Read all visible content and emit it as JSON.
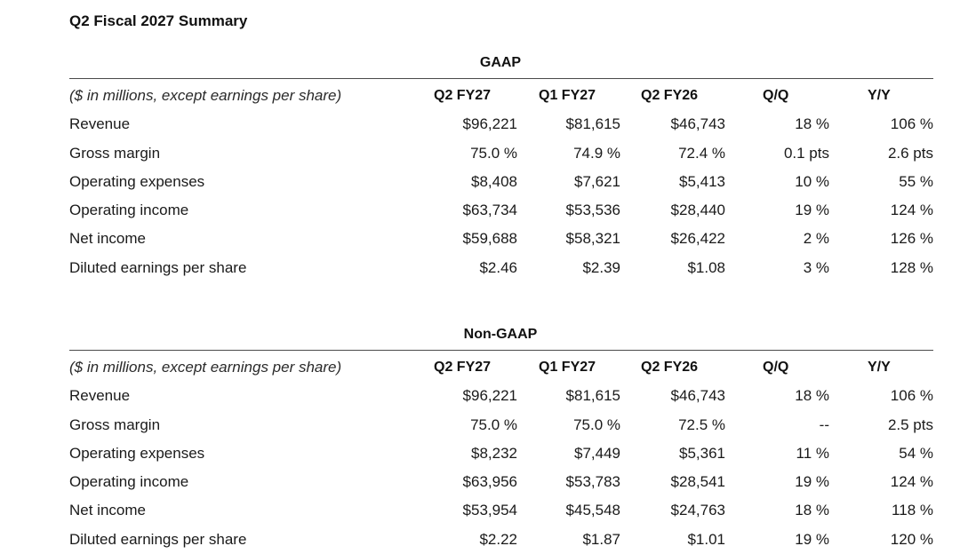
{
  "title": "Q2 Fiscal 2027 Summary",
  "columns": [
    "Q2 FY27",
    "Q1 FY27",
    "Q2 FY26",
    "Q/Q",
    "Y/Y"
  ],
  "sections": [
    {
      "heading": "GAAP",
      "unit_note": "($ in millions, except earnings per share)",
      "rows": [
        {
          "label": "Revenue",
          "q2fy27": "$96,221",
          "q1fy27": "$81,615",
          "q2fy26": "$46,743",
          "qq": "18 %",
          "yy": "106 %"
        },
        {
          "label": "Gross margin",
          "q2fy27": "75.0 %",
          "q1fy27": "74.9 %",
          "q2fy26": "72.4 %",
          "qq": "0.1 pts",
          "yy": "2.6 pts"
        },
        {
          "label": "Operating expenses",
          "q2fy27": "$8,408",
          "q1fy27": "$7,621",
          "q2fy26": "$5,413",
          "qq": "10 %",
          "yy": "55 %"
        },
        {
          "label": "Operating income",
          "q2fy27": "$63,734",
          "q1fy27": "$53,536",
          "q2fy26": "$28,440",
          "qq": "19 %",
          "yy": "124 %"
        },
        {
          "label": "Net income",
          "q2fy27": "$59,688",
          "q1fy27": "$58,321",
          "q2fy26": "$26,422",
          "qq": "2 %",
          "yy": "126 %"
        },
        {
          "label": "Diluted earnings per share",
          "q2fy27": "$2.46",
          "q1fy27": "$2.39",
          "q2fy26": "$1.08",
          "qq": "3 %",
          "yy": "128 %"
        }
      ]
    },
    {
      "heading": "Non-GAAP",
      "unit_note": "($ in millions, except earnings per share)",
      "rows": [
        {
          "label": "Revenue",
          "q2fy27": "$96,221",
          "q1fy27": "$81,615",
          "q2fy26": "$46,743",
          "qq": "18 %",
          "yy": "106 %"
        },
        {
          "label": "Gross margin",
          "q2fy27": "75.0 %",
          "q1fy27": "75.0 %",
          "q2fy26": "72.5 %",
          "qq": "--",
          "yy": "2.5 pts"
        },
        {
          "label": "Operating expenses",
          "q2fy27": "$8,232",
          "q1fy27": "$7,449",
          "q2fy26": "$5,361",
          "qq": "11 %",
          "yy": "54 %"
        },
        {
          "label": "Operating income",
          "q2fy27": "$63,956",
          "q1fy27": "$53,783",
          "q2fy26": "$28,541",
          "qq": "19 %",
          "yy": "124 %"
        },
        {
          "label": "Net income",
          "q2fy27": "$53,954",
          "q1fy27": "$45,548",
          "q2fy26": "$24,763",
          "qq": "18 %",
          "yy": "118 %"
        },
        {
          "label": "Diluted earnings per share",
          "q2fy27": "$2.22",
          "q1fy27": "$1.87",
          "q2fy26": "$1.01",
          "qq": "19 %",
          "yy": "120 %"
        }
      ]
    }
  ]
}
